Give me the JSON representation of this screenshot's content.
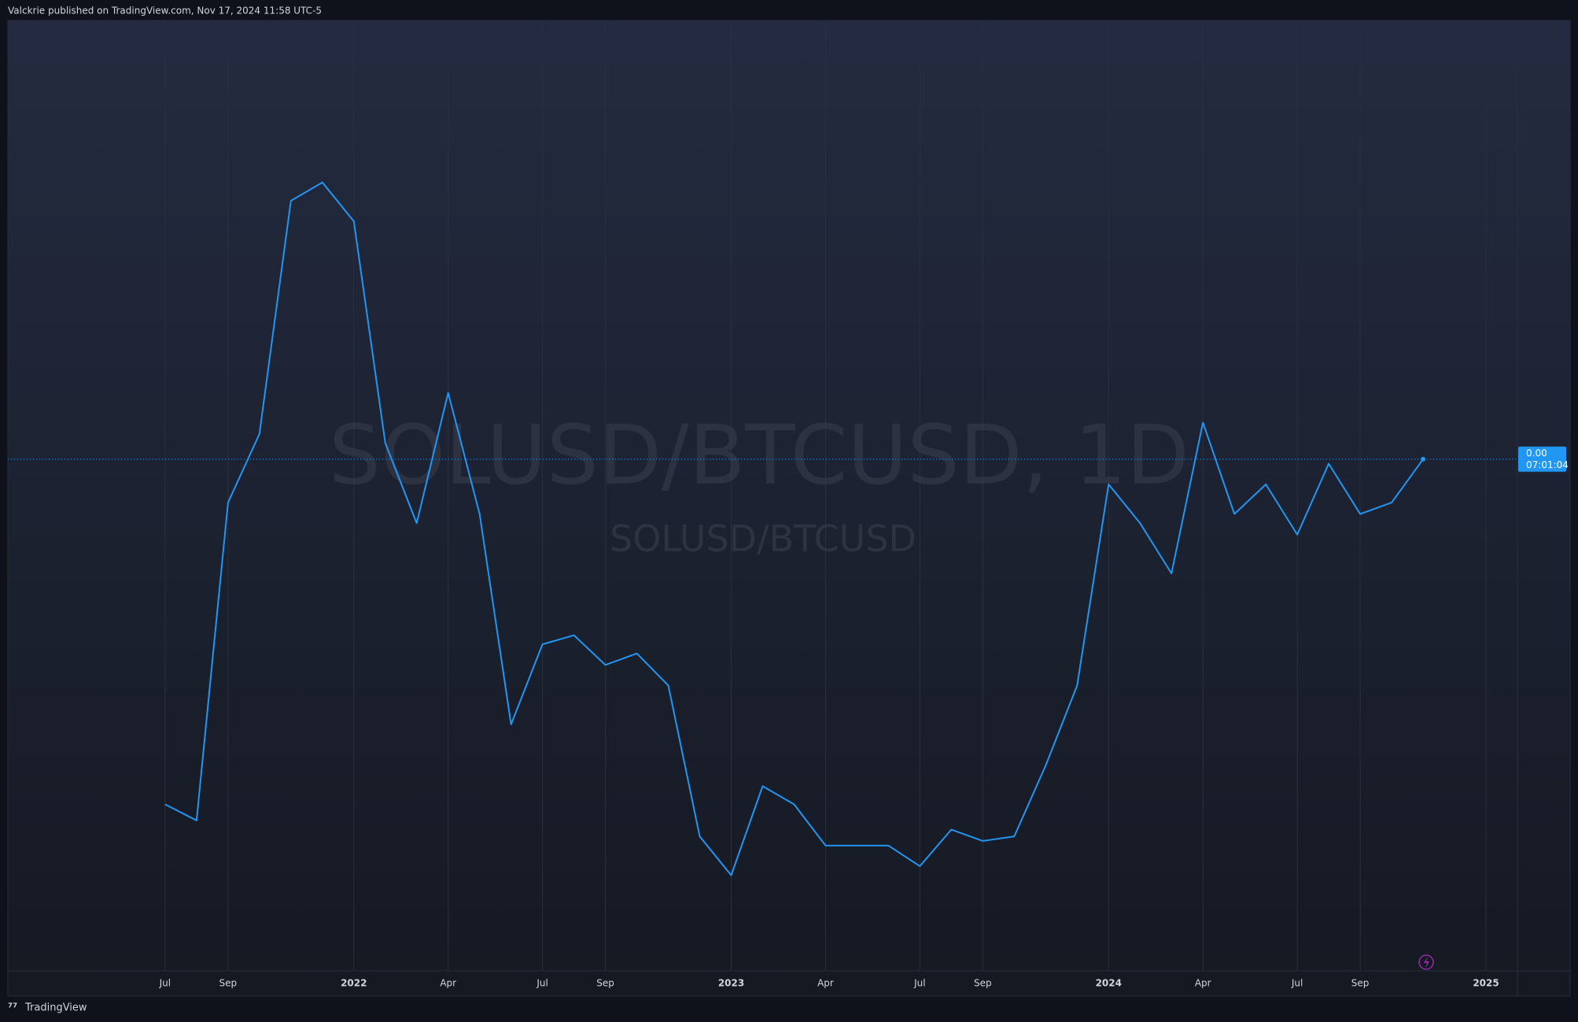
{
  "header": {
    "published": "Valckrie published on TradingView.com, Nov 17, 2024 11:58 UTC-5",
    "brand": "TradingView"
  },
  "chart_data": {
    "type": "line",
    "title": "SOLUSD/BTCUSD, 1D",
    "subtitle": "SOLUSD/BTCUSD",
    "x": [
      "2021-07",
      "2021-08",
      "2021-09",
      "2021-10",
      "2021-11",
      "2021-12",
      "2022-01",
      "2022-02",
      "2022-03",
      "2022-04",
      "2022-05",
      "2022-06",
      "2022-07",
      "2022-08",
      "2022-09",
      "2022-10",
      "2022-11",
      "2022-12",
      "2023-01",
      "2023-02",
      "2023-03",
      "2023-04",
      "2023-05",
      "2023-06",
      "2023-07",
      "2023-08",
      "2023-09",
      "2023-10",
      "2023-11",
      "2023-12",
      "2024-01",
      "2024-02",
      "2024-03",
      "2024-04",
      "2024-05",
      "2024-06",
      "2024-07",
      "2024-08",
      "2024-09",
      "2024-10",
      "2024-11"
    ],
    "values": [
      0.00089,
      0.00082,
      0.00221,
      0.00251,
      0.00353,
      0.00361,
      0.00344,
      0.00247,
      0.00212,
      0.00269,
      0.00216,
      0.00124,
      0.00159,
      0.00163,
      0.0015,
      0.00155,
      0.00141,
      0.00075,
      0.00058,
      0.00097,
      0.00089,
      0.00071,
      0.00071,
      0.00071,
      0.00062,
      0.00078,
      0.00073,
      0.00075,
      0.00106,
      0.00141,
      0.00229,
      0.00212,
      0.0019,
      0.00256,
      0.00216,
      0.00229,
      0.00207,
      0.00238,
      0.00216,
      0.00221,
      0.0024
    ],
    "color": "#2196f3",
    "xlim": [
      "2021-02",
      "2025-02"
    ],
    "ylim": [
      0.00016,
      0.00432
    ],
    "xticks": [
      {
        "value": "2021-07",
        "label": "Jul"
      },
      {
        "value": "2021-09",
        "label": "Sep"
      },
      {
        "value": "2022-01",
        "label": "2022"
      },
      {
        "value": "2022-04",
        "label": "Apr"
      },
      {
        "value": "2022-07",
        "label": "Jul"
      },
      {
        "value": "2022-09",
        "label": "Sep"
      },
      {
        "value": "2023-01",
        "label": "2023"
      },
      {
        "value": "2023-04",
        "label": "Apr"
      },
      {
        "value": "2023-07",
        "label": "Jul"
      },
      {
        "value": "2023-09",
        "label": "Sep"
      },
      {
        "value": "2024-01",
        "label": "2024"
      },
      {
        "value": "2024-04",
        "label": "Apr"
      },
      {
        "value": "2024-07",
        "label": "Jul"
      },
      {
        "value": "2024-09",
        "label": "Sep"
      },
      {
        "value": "2025-01",
        "label": "2025"
      }
    ],
    "grid": true,
    "last_price": {
      "value": 0.0024,
      "label": "0.00"
    },
    "countdown": "07:01:04"
  }
}
